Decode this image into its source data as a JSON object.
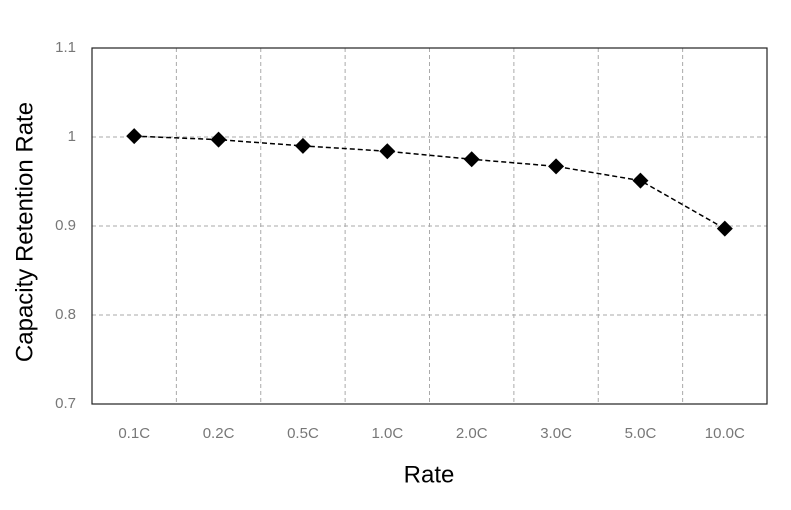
{
  "chart_data": {
    "type": "line",
    "x_label": "Rate",
    "y_label": "Capacity Retention Rate",
    "categories": [
      "0.1C",
      "0.2C",
      "0.5C",
      "1.0C",
      "2.0C",
      "3.0C",
      "5.0C",
      "10.0C"
    ],
    "series": [
      {
        "name": "Capacity Retention Rate",
        "color": "#000000",
        "values": [
          1.001,
          0.997,
          0.99,
          0.984,
          0.975,
          0.967,
          0.951,
          0.897
        ]
      }
    ],
    "ylim": [
      0.7,
      1.1
    ],
    "yticks": [
      0.7,
      0.8,
      0.9,
      1,
      1.1
    ],
    "grid": true
  }
}
